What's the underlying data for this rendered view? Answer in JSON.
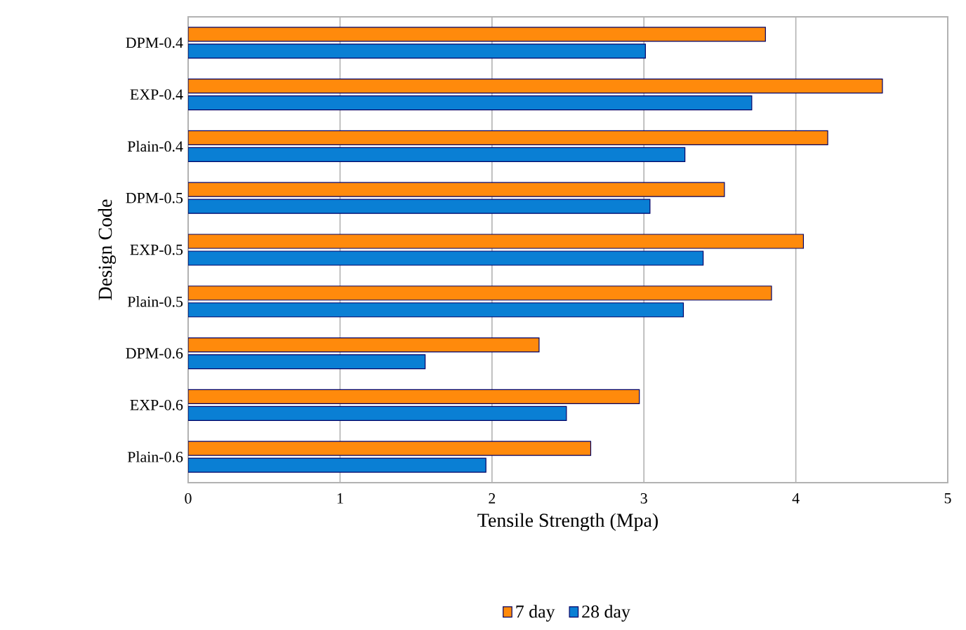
{
  "chart_data": {
    "type": "bar",
    "orientation": "horizontal",
    "xlabel": "Tensile Strength (Mpa)",
    "ylabel": "Design Code",
    "categories": [
      "DPM-0.4",
      "EXP-0.4",
      "Plain-0.4",
      "DPM-0.5",
      "EXP-0.5",
      "Plain-0.5",
      "DPM-0.6",
      "EXP-0.6",
      "Plain-0.6"
    ],
    "series": [
      {
        "name": "7 day",
        "color": "#ff8a0c",
        "values": [
          3.8,
          4.57,
          4.21,
          3.53,
          4.05,
          3.84,
          2.31,
          2.97,
          2.65
        ]
      },
      {
        "name": "28 day",
        "color": "#0a7fd4",
        "values": [
          3.01,
          3.71,
          3.27,
          3.04,
          3.39,
          3.26,
          1.56,
          2.49,
          1.96
        ]
      }
    ],
    "xlim": [
      0,
      5
    ],
    "xticks": [
      0,
      1,
      2,
      3,
      4,
      5
    ],
    "grid": "x",
    "legend": "bottom"
  }
}
